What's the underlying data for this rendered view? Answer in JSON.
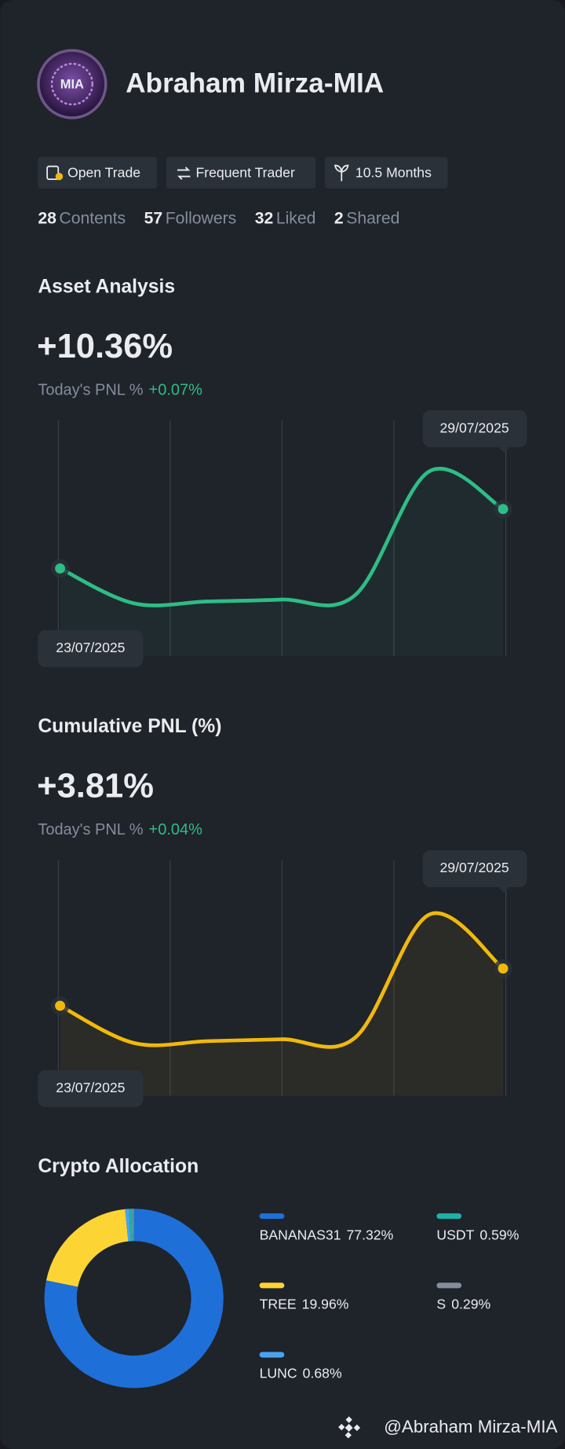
{
  "profile": {
    "avatar_text": "MIA",
    "name": "Abraham Mirza-MIA",
    "badges": [
      "Open Trade",
      "Frequent Trader",
      "10.5 Months"
    ],
    "stats": [
      {
        "count": 28,
        "label": "Contents"
      },
      {
        "count": 57,
        "label": "Followers"
      },
      {
        "count": 32,
        "label": "Liked"
      },
      {
        "count": 2,
        "label": "Shared"
      }
    ]
  },
  "chart_data": [
    {
      "type": "line",
      "title": "Asset Analysis",
      "headline": "+10.36%",
      "today_label": "Today's PNL %",
      "today_value": "+0.07%",
      "categories": [
        "23/07/2025",
        null,
        null,
        null,
        null,
        null,
        "29/07/2025"
      ],
      "values": [
        6.58,
        4.36,
        4.48,
        4.6,
        4.9,
        12.76,
        10.36
      ],
      "color": "#2ebd85",
      "ylim": [
        1,
        16
      ]
    },
    {
      "type": "line",
      "title": "Cumulative PNL (%)",
      "headline": "+3.81%",
      "today_label": "Today's PNL %",
      "today_value": "+0.04%",
      "categories": [
        "23/07/2025",
        null,
        null,
        null,
        null,
        null,
        "29/07/2025"
      ],
      "values": [
        2.61,
        1.41,
        1.47,
        1.53,
        1.59,
        5.55,
        3.81
      ],
      "color": "#f0b90b",
      "ylim": [
        -0.3,
        7.3
      ]
    },
    {
      "type": "pie",
      "donut": true,
      "title": "Crypto Allocation",
      "categories": [
        "BANANAS31",
        "TREE",
        "LUNC",
        "USDT",
        "S"
      ],
      "values": [
        77.32,
        19.96,
        0.68,
        0.59,
        0.29
      ],
      "value_labels": [
        "77.32%",
        "19.96%",
        "0.68%",
        "0.59%",
        "0.29%"
      ],
      "colors": [
        "#1f6fd8",
        "#fcd535",
        "#4aa3f0",
        "#1bb3a8",
        "#848e9c"
      ]
    }
  ],
  "footer": "@Abraham Mirza-MIA"
}
